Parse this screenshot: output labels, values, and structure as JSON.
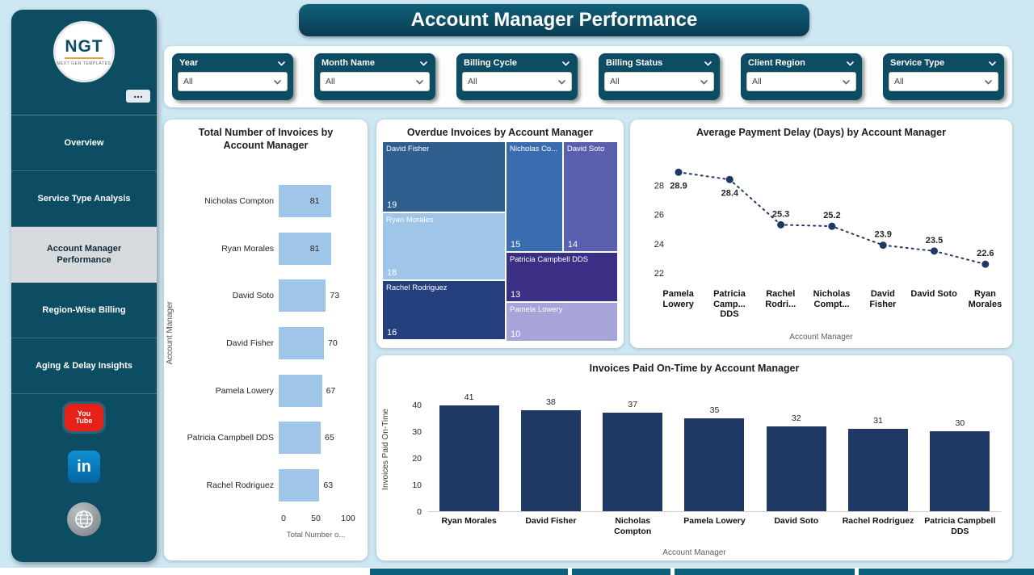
{
  "title": "Account Manager Performance",
  "colors": {
    "teal": "#0d4d63",
    "light_bar": "#9fc5e8",
    "dark_navy": "#1f3864",
    "page_bg": "#cde7f3"
  },
  "sidebar": {
    "logo": {
      "text": "NGT",
      "subtext": "NEXT GEN TEMPLATES"
    },
    "more_label": "...",
    "items": [
      {
        "label": "Overview",
        "active": false
      },
      {
        "label": "Service Type Analysis",
        "active": false
      },
      {
        "label": "Account Manager Performance",
        "active": true
      },
      {
        "label": "Region-Wise Billing",
        "active": false
      },
      {
        "label": "Aging & Delay Insights",
        "active": false
      }
    ],
    "social": {
      "youtube_line1": "You",
      "youtube_line2": "Tube",
      "linkedin_label": "in"
    }
  },
  "filters": [
    {
      "label": "Year",
      "value": "All"
    },
    {
      "label": "Month Name",
      "value": "All"
    },
    {
      "label": "Billing Cycle",
      "value": "All"
    },
    {
      "label": "Billing Status",
      "value": "All"
    },
    {
      "label": "Client Region",
      "value": "All"
    },
    {
      "label": "Service Type",
      "value": "All"
    }
  ],
  "chart_data": [
    {
      "type": "bar",
      "orientation": "horizontal",
      "title": "Total Number of Invoices by Account Manager",
      "categories": [
        "Nicholas Compton",
        "Ryan Morales",
        "David Soto",
        "David Fisher",
        "Pamela Lowery",
        "Patricia Campbell DDS",
        "Rachel Rodriguez"
      ],
      "values": [
        81,
        81,
        73,
        70,
        67,
        65,
        63
      ],
      "xticks": [
        0,
        50,
        100
      ],
      "xlim": [
        0,
        100
      ],
      "xlabel": "Total Number o...",
      "ylabel": "Account Manager",
      "bar_color": "#9fc5e8"
    },
    {
      "type": "treemap",
      "title": "Overdue Invoices by Account Manager",
      "items": [
        {
          "label": "David Fisher",
          "value": 19,
          "color": "#2e5f8f"
        },
        {
          "label": "Ryan Morales",
          "value": 18,
          "color": "#9fc5e8"
        },
        {
          "label": "Rachel Rodriguez",
          "value": 16,
          "color": "#25407d"
        },
        {
          "label": "Nicholas Co...",
          "value": 15,
          "color": "#3a6db0"
        },
        {
          "label": "David Soto",
          "value": 14,
          "color": "#5a5fae"
        },
        {
          "label": "Patricia Campbell DDS",
          "value": 13,
          "color": "#3b2f85"
        },
        {
          "label": "Pamela Lowery",
          "value": 10,
          "color": "#a7a4d9"
        }
      ]
    },
    {
      "type": "line",
      "title": "Average Payment Delay (Days) by Account Manager",
      "categories": [
        "Pamela Lowery",
        "Patricia Camp... DDS",
        "Rachel Rodri...",
        "Nicholas Compt...",
        "David Fisher",
        "David Soto",
        "Ryan Morales"
      ],
      "values": [
        28.9,
        28.4,
        25.3,
        25.2,
        23.9,
        23.5,
        22.6
      ],
      "yticks": [
        22,
        24,
        26,
        28
      ],
      "ylim": [
        21.5,
        29.8
      ],
      "xlabel": "Account Manager",
      "line_color": "#1f3864",
      "line_style": "dotted"
    },
    {
      "type": "column",
      "title": "Invoices Paid On-Time by Account Manager",
      "categories": [
        "Ryan Morales",
        "David Fisher",
        "Nicholas Compton",
        "Pamela Lowery",
        "David Soto",
        "Rachel Rodriguez",
        "Patricia Campbell DDS"
      ],
      "values": [
        41,
        38,
        37,
        35,
        32,
        31,
        30
      ],
      "yticks": [
        0,
        10,
        20,
        30,
        40
      ],
      "ylim": [
        0,
        45
      ],
      "xlabel": "Account Manager",
      "ylabel": "Invoices Paid On-Time",
      "bar_color": "#1f3864"
    }
  ]
}
